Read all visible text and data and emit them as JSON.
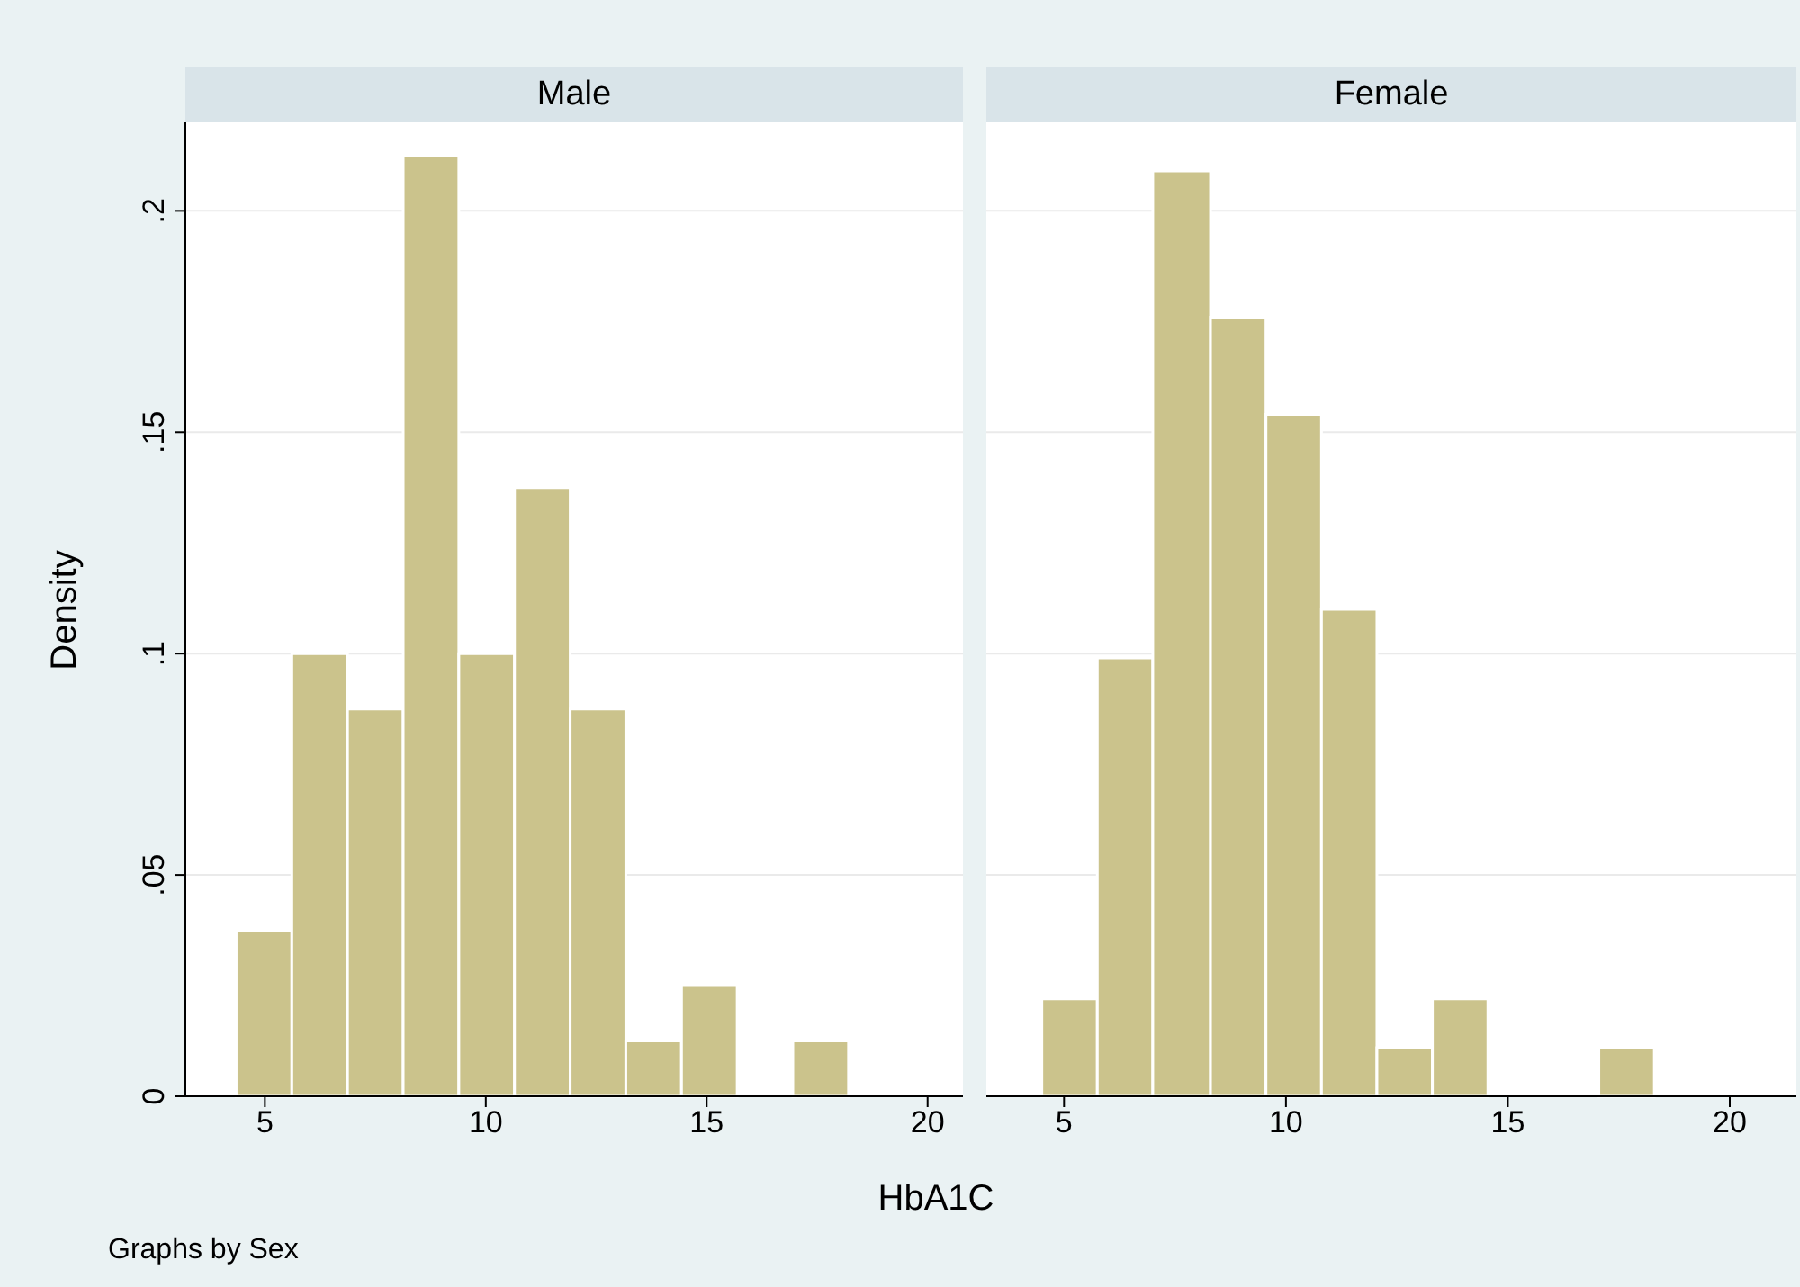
{
  "chart_data": [
    {
      "type": "histogram",
      "title": "Male",
      "ylabel": "Density",
      "xlabel": "HbA1C",
      "annotations": [
        "Graphs by Sex"
      ],
      "bins": [
        4.35,
        5.61,
        6.87,
        8.13,
        9.39,
        10.65,
        11.91,
        13.17,
        14.43,
        15.69,
        16.95,
        18.21
      ],
      "values": [
        0.0375,
        0.1,
        0.0875,
        0.2125,
        0.1,
        0.1375,
        0.0875,
        0.0125,
        0.025,
        0,
        0.0125
      ],
      "color": "#cbc38c",
      "xlim": [
        3.2,
        20.8
      ],
      "xticks": [
        5,
        10,
        15,
        20
      ],
      "ylim": [
        0,
        0.22
      ],
      "yticks": [
        {
          "value": 0,
          "label": "0"
        },
        {
          "value": 0.05,
          "label": ".05"
        },
        {
          "value": 0.1,
          "label": ".1"
        },
        {
          "value": 0.15,
          "label": ".15"
        },
        {
          "value": 0.2,
          "label": ".2"
        }
      ],
      "grid": "y"
    },
    {
      "type": "histogram",
      "title": "Female",
      "bins": [
        4.5,
        5.75,
        7.0,
        8.3,
        9.55,
        10.8,
        12.05,
        13.3,
        14.55,
        17.05,
        18.3
      ],
      "values": [
        0.022,
        0.099,
        0.209,
        0.176,
        0.154,
        0.11,
        0.011,
        0.022,
        0,
        0.011
      ],
      "color": "#cbc38c",
      "xlim": [
        3.25,
        21.5
      ],
      "xticks": [
        5,
        10,
        15,
        20
      ],
      "ylim": [
        0,
        0.22
      ],
      "yticks": [
        {
          "value": 0,
          "label": null
        },
        {
          "value": 0.05,
          "label": null
        },
        {
          "value": 0.1,
          "label": null
        },
        {
          "value": 0.15,
          "label": null
        },
        {
          "value": 0.2,
          "label": null
        }
      ],
      "grid": "y",
      "tick_labels": "x"
    }
  ]
}
